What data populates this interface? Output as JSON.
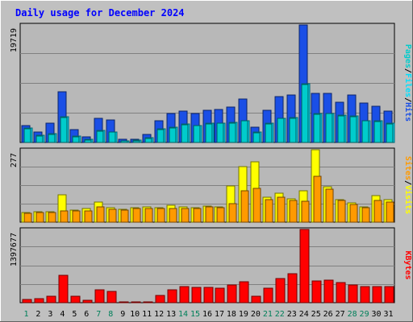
{
  "chart_data": [
    {
      "type": "bar",
      "title": "Daily usage for December 2024",
      "categories": [
        "1",
        "2",
        "3",
        "4",
        "5",
        "6",
        "7",
        "8",
        "9",
        "10",
        "11",
        "12",
        "13",
        "14",
        "15",
        "16",
        "17",
        "18",
        "19",
        "20",
        "21",
        "22",
        "23",
        "24",
        "25",
        "26",
        "27",
        "28",
        "29",
        "30",
        "31"
      ],
      "weekend_days": [
        "1",
        "7",
        "8",
        "14",
        "15",
        "21",
        "22",
        "28",
        "29"
      ],
      "panels": [
        {
          "max_label": "19719",
          "ymax": 19719,
          "side_label": [
            "Pages",
            "Files",
            "Hits"
          ],
          "series": [
            {
              "name": "Hits",
              "color": "#1a4fe6",
              "values": [
                2900,
                1700,
                3300,
                8500,
                2200,
                1000,
                4000,
                3800,
                500,
                600,
                1400,
                3600,
                4800,
                5200,
                4900,
                5400,
                5500,
                6000,
                7300,
                2600,
                5400,
                7700,
                8000,
                19719,
                8200,
                8200,
                6800,
                8000,
                6600,
                6100,
                5300
              ]
            },
            {
              "name": "Files",
              "color": "#00e1ff",
              "values": [
                2400,
                1200,
                1500,
                4300,
                1100,
                500,
                2000,
                1800,
                300,
                400,
                800,
                2300,
                2500,
                3100,
                2900,
                3200,
                3300,
                3400,
                3700,
                1700,
                3200,
                4100,
                4200,
                9900,
                4800,
                4900,
                4600,
                4400,
                3700,
                3600,
                3200
              ]
            },
            {
              "name": "Pages",
              "color": "#00cccc",
              "values": [
                2300,
                1100,
                1400,
                4200,
                1000,
                400,
                1900,
                1700,
                300,
                300,
                700,
                2200,
                2400,
                3000,
                2800,
                3100,
                3200,
                3300,
                3600,
                1600,
                3100,
                4000,
                4100,
                9700,
                4700,
                4800,
                4500,
                4300,
                3600,
                3500,
                3100
              ]
            }
          ]
        },
        {
          "max_label": "277",
          "ymax": 277,
          "side_label": [
            "Sites",
            "Visits"
          ],
          "series": [
            {
              "name": "Visits",
              "color": "#ffff00",
              "values": [
                38,
                40,
                40,
                106,
                47,
                52,
                78,
                56,
                50,
                55,
                58,
                56,
                64,
                59,
                55,
                62,
                57,
                138,
                212,
                231,
                96,
                110,
                88,
                121,
                277,
                134,
                87,
                74,
                60,
                101,
                85
              ]
            },
            {
              "name": "Sites",
              "color": "#ff9a00",
              "values": [
                35,
                37,
                36,
                42,
                44,
                44,
                60,
                49,
                47,
                51,
                52,
                51,
                53,
                53,
                52,
                57,
                55,
                72,
                119,
                129,
                87,
                95,
                84,
                79,
                174,
                125,
                83,
                67,
                56,
                84,
                77
              ]
            }
          ]
        },
        {
          "max_label": "1397677",
          "ymax": 1397677,
          "side_label": [
            "KBytes"
          ],
          "series": [
            {
              "name": "KBytes",
              "color": "#ff0000",
              "values": [
                65000,
                75000,
                130000,
                520000,
                125000,
                40000,
                240000,
                215000,
                18000,
                15000,
                18000,
                135000,
                250000,
                310000,
                285000,
                295000,
                280000,
                345000,
                405000,
                130000,
                280000,
                465000,
                555000,
                1397677,
                415000,
                435000,
                390000,
                335000,
                300000,
                300000,
                300000
              ]
            }
          ]
        }
      ],
      "grid": true
    }
  ]
}
